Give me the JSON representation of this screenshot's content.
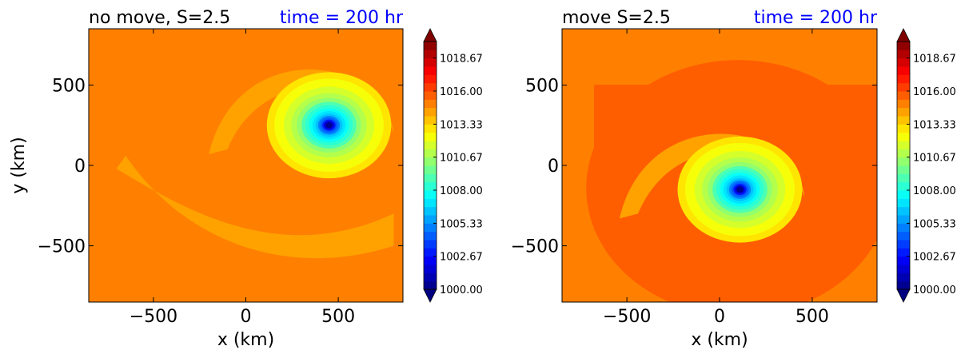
{
  "chart_data": [
    {
      "type": "heatmap",
      "title": "no move, S=2.5",
      "time_label": "time = 200 hr",
      "xlabel": "x (km)",
      "ylabel": "y (km)",
      "xlim": [
        -850,
        850
      ],
      "ylim": [
        -850,
        850
      ],
      "xticks": [
        -500,
        0,
        500
      ],
      "yticks": [
        -500,
        0,
        500
      ],
      "xtick_labels": [
        "−500",
        "0",
        "500"
      ],
      "ytick_labels": [
        "−500",
        "0",
        "500"
      ],
      "colorbar": {
        "min": 1000.0,
        "max": 1020.0,
        "extend": "both",
        "tick_values": [
          1000.0,
          1002.67,
          1005.33,
          1008.0,
          1010.67,
          1013.33,
          1016.0,
          1018.67
        ],
        "tick_labels": [
          "1000.00",
          "1002.67",
          "1005.33",
          "1008.00",
          "1010.67",
          "1013.33",
          "1016.00",
          "1018.67"
        ]
      },
      "background_value": 1015.0,
      "vortex_center_km": [
        450,
        250
      ],
      "central_pressure": 1000.0
    },
    {
      "type": "heatmap",
      "title": "move S=2.5",
      "time_label": "time = 200 hr",
      "xlabel": "x (km)",
      "ylabel": "",
      "xlim": [
        -850,
        850
      ],
      "ylim": [
        -850,
        850
      ],
      "xticks": [
        -500,
        0,
        500
      ],
      "yticks": [
        -500,
        0,
        500
      ],
      "xtick_labels": [
        "−500",
        "0",
        "500"
      ],
      "ytick_labels": [
        "−500",
        "0",
        "500"
      ],
      "colorbar": {
        "min": 1000.0,
        "max": 1020.0,
        "extend": "both",
        "tick_values": [
          1000.0,
          1002.67,
          1005.33,
          1008.0,
          1010.67,
          1013.33,
          1016.0,
          1018.67
        ],
        "tick_labels": [
          "1000.00",
          "1002.67",
          "1005.33",
          "1008.00",
          "1010.67",
          "1013.33",
          "1016.00",
          "1018.67"
        ]
      },
      "background_value": 1015.5,
      "vortex_center_km": [
        110,
        -150
      ],
      "central_pressure": 1000.0
    }
  ],
  "colors": {
    "title_time": "#0000ff",
    "title": "#000000"
  }
}
